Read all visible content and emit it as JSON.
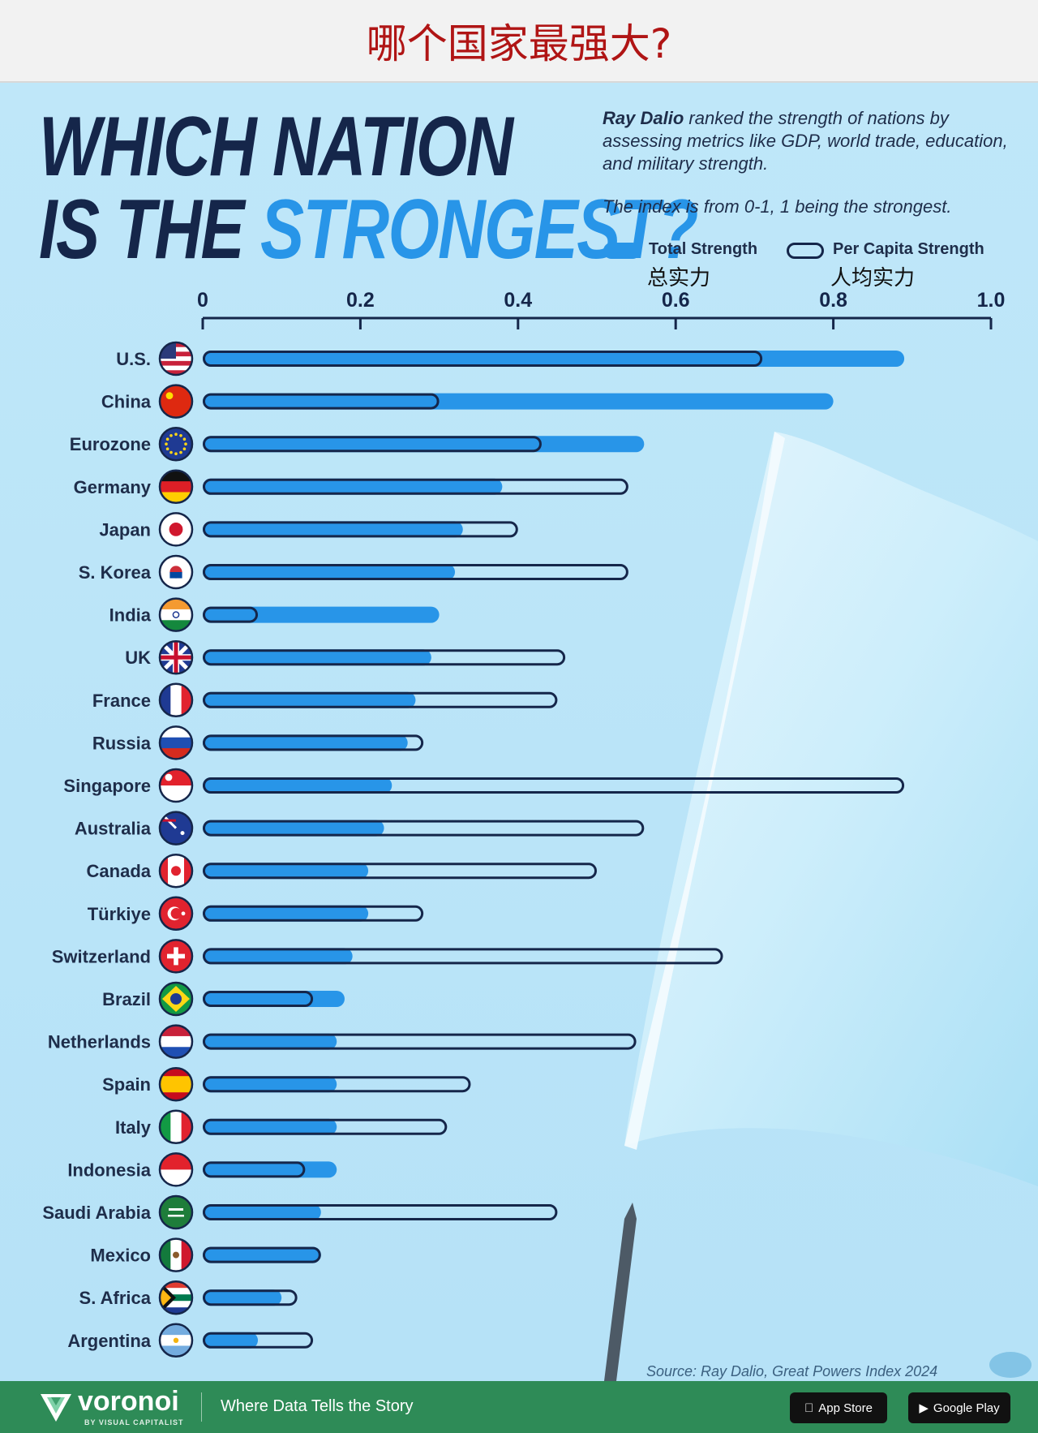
{
  "header": {
    "chinese_title": "哪个国家最强大?"
  },
  "poster": {
    "title_line1": "WHICH NATION",
    "title_line2_prefix": "IS THE",
    "title_line2_accent": "STRONGEST?",
    "intro_bold": "Ray Dalio",
    "intro_rest": "ranked the strength of nations by assessing metrics like GDP, world trade, education, and military strength.",
    "index_note": "The index is from 0-1, 1 being the strongest.",
    "source": "Source: Ray Dalio, Great Powers Index 2024"
  },
  "legend": {
    "total_label": "Total Strength",
    "total_cn": "总实力",
    "per_capita_label": "Per Capita Strength",
    "per_capita_cn": "人均实力"
  },
  "colors": {
    "total": "#2895e8",
    "outline": "#15264a",
    "background": "#bde6f8",
    "footer": "#2e8b57"
  },
  "chart_data": {
    "type": "bar",
    "orientation": "horizontal",
    "title": "WHICH NATION IS THE STRONGEST?",
    "xlim": [
      0,
      1.0
    ],
    "xticks": [
      "0",
      "0.2",
      "0.4",
      "0.6",
      "0.8",
      "1.0"
    ],
    "categories": [
      "U.S.",
      "China",
      "Eurozone",
      "Germany",
      "Japan",
      "S. Korea",
      "India",
      "UK",
      "France",
      "Russia",
      "Singapore",
      "Australia",
      "Canada",
      "Türkiye",
      "Switzerland",
      "Brazil",
      "Netherlands",
      "Spain",
      "Italy",
      "Indonesia",
      "Saudi Arabia",
      "Mexico",
      "S. Africa",
      "Argentina"
    ],
    "series": [
      {
        "name": "Total Strength",
        "values": [
          0.89,
          0.8,
          0.56,
          0.38,
          0.33,
          0.32,
          0.3,
          0.29,
          0.27,
          0.26,
          0.24,
          0.23,
          0.21,
          0.21,
          0.19,
          0.18,
          0.17,
          0.17,
          0.17,
          0.17,
          0.15,
          0.15,
          0.1,
          0.07
        ]
      },
      {
        "name": "Per Capita Strength",
        "values": [
          0.71,
          0.3,
          0.43,
          0.54,
          0.4,
          0.54,
          0.07,
          0.46,
          0.45,
          0.28,
          0.89,
          0.56,
          0.5,
          0.28,
          0.66,
          0.14,
          0.55,
          0.34,
          0.31,
          0.13,
          0.45,
          0.15,
          0.12,
          0.14
        ]
      }
    ],
    "flags": [
      "us",
      "cn",
      "eu",
      "de",
      "jp",
      "kr",
      "in",
      "uk",
      "fr",
      "ru",
      "sg",
      "au",
      "ca",
      "tr",
      "ch",
      "br",
      "nl",
      "es",
      "it",
      "id",
      "sa",
      "mx",
      "za",
      "ar"
    ]
  },
  "footer": {
    "brand": "voronoi",
    "brand_sub": "BY VISUAL CAPITALIST",
    "tagline": "Where Data Tells the Story",
    "app_store": "App Store",
    "google_play": "Google Play"
  }
}
